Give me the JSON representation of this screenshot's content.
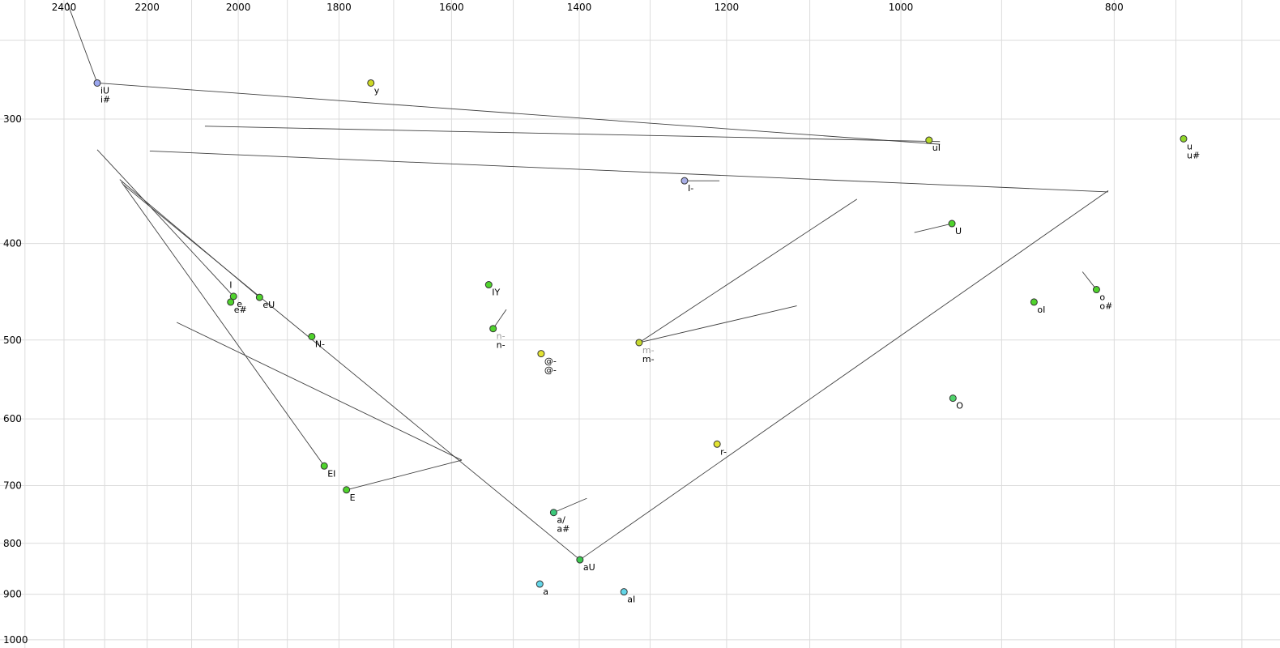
{
  "chart_data": {
    "type": "scatter",
    "title": "",
    "description": "Vowel formant plot: F2 (Hz) on reversed logarithmic top axis, F1 (Hz) on logarithmic left axis, with vowel tokens and diphthong trajectory lines",
    "x_axis": {
      "scale": "log",
      "reversed": true,
      "range": [
        2500,
        700
      ],
      "ticks": [
        2400,
        2200,
        2000,
        1800,
        1600,
        1400,
        1200,
        1000,
        800
      ],
      "gridlines": [
        2500,
        2400,
        2300,
        2200,
        2100,
        2000,
        1900,
        1800,
        1700,
        1600,
        1500,
        1400,
        1300,
        1200,
        1100,
        1000,
        900,
        800,
        750,
        700
      ]
    },
    "y_axis": {
      "scale": "log",
      "range": [
        250,
        1000
      ],
      "ticks": [
        300,
        400,
        500,
        600,
        700,
        800,
        900,
        1000
      ],
      "gridlines": [
        250,
        300,
        400,
        500,
        600,
        700,
        800,
        900,
        1000
      ]
    },
    "colors": {
      "grid": "#dcdcdc",
      "line": "#404040",
      "text": "#000000",
      "muted_label": "#999999",
      "point_stroke": "#333333"
    },
    "points": [
      {
        "id": "iU",
        "f2": 2318,
        "f1": 276,
        "color": "#9aa6ee",
        "labels": [
          {
            "t": "iU"
          },
          {
            "t": "i#"
          }
        ]
      },
      {
        "id": "y",
        "f2": 1741,
        "f1": 276,
        "color": "#cdd824",
        "labels": [
          {
            "t": "y"
          }
        ]
      },
      {
        "id": "uI",
        "f2": 971,
        "f1": 315,
        "color": "#b6d828",
        "labels": [
          {
            "t": "uI"
          }
        ]
      },
      {
        "id": "u",
        "f2": 744,
        "f1": 314,
        "color": "#90d62a",
        "labels": [
          {
            "t": "u"
          },
          {
            "t": "u#"
          }
        ]
      },
      {
        "id": "I-",
        "f2": 1254,
        "f1": 346,
        "color": "#a8aee6",
        "labels": [
          {
            "t": "I-"
          }
        ]
      },
      {
        "id": "U",
        "f2": 948,
        "f1": 382,
        "color": "#4fd32c",
        "labels": [
          {
            "t": "U"
          }
        ]
      },
      {
        "id": "e",
        "f2": 2010,
        "f1": 452,
        "color": "#4fd32c",
        "labels": [
          {
            "t": "e"
          }
        ]
      },
      {
        "id": "e#",
        "f2": 2016,
        "f1": 458,
        "color": "#4fd32c",
        "labels": [
          {
            "t": "e#"
          }
        ]
      },
      {
        "id": "eU",
        "f2": 1956,
        "f1": 453,
        "color": "#4fd32c",
        "labels": [
          {
            "t": "eU"
          }
        ]
      },
      {
        "id": "IY",
        "f2": 1539,
        "f1": 440,
        "color": "#4fd32c",
        "labels": [
          {
            "t": "IY"
          }
        ]
      },
      {
        "id": "n-",
        "f2": 1532,
        "f1": 487,
        "color": "#4fd32c",
        "labels": [
          {
            "t": "n-",
            "muted": true
          },
          {
            "t": "n-"
          }
        ]
      },
      {
        "id": "@-",
        "f2": 1457,
        "f1": 516,
        "color": "#e3e332",
        "labels": [
          {
            "t": "@-"
          },
          {
            "t": "@-"
          }
        ]
      },
      {
        "id": "m-",
        "f2": 1315,
        "f1": 503,
        "color": "#c6d82e",
        "labels": [
          {
            "t": "m-",
            "muted": true
          },
          {
            "t": "m-"
          }
        ]
      },
      {
        "id": "o",
        "f2": 815,
        "f1": 445,
        "color": "#4fd32c",
        "labels": [
          {
            "t": "o"
          },
          {
            "t": "o#"
          }
        ]
      },
      {
        "id": "oI",
        "f2": 870,
        "f1": 458,
        "color": "#4fd32c",
        "labels": [
          {
            "t": "oI"
          }
        ]
      },
      {
        "id": "N-",
        "f2": 1852,
        "f1": 496,
        "color": "#4fd32c",
        "labels": [
          {
            "t": "N-"
          }
        ]
      },
      {
        "id": "O",
        "f2": 947,
        "f1": 572,
        "color": "#4fd36a",
        "labels": [
          {
            "t": "O"
          }
        ]
      },
      {
        "id": "r-",
        "f2": 1212,
        "f1": 636,
        "color": "#e3e332",
        "labels": [
          {
            "t": "r-"
          }
        ]
      },
      {
        "id": "EI",
        "f2": 1828,
        "f1": 669,
        "color": "#4fd32c",
        "labels": [
          {
            "t": "EI"
          }
        ]
      },
      {
        "id": "E",
        "f2": 1786,
        "f1": 707,
        "color": "#4fd32c",
        "labels": [
          {
            "t": "E"
          }
        ]
      },
      {
        "id": "a/",
        "f2": 1438,
        "f1": 745,
        "color": "#3cc87a",
        "labels": [
          {
            "t": "a/"
          },
          {
            "t": "a#"
          }
        ]
      },
      {
        "id": "aU",
        "f2": 1399,
        "f1": 831,
        "color": "#3cc84f",
        "labels": [
          {
            "t": "aU"
          }
        ]
      },
      {
        "id": "a",
        "f2": 1459,
        "f1": 879,
        "color": "#63d6e8",
        "labels": [
          {
            "t": "a"
          }
        ]
      },
      {
        "id": "aI",
        "f2": 1336,
        "f1": 895,
        "color": "#63d6e8",
        "labels": [
          {
            "t": "aI"
          }
        ]
      }
    ],
    "annotations": [
      {
        "t": "I",
        "f2": 2015,
        "f1": 440
      }
    ],
    "segments": [
      [
        2392,
        229,
        2318,
        276
      ],
      [
        2318,
        276,
        960,
        318
      ],
      [
        2071,
        305,
        960,
        316
      ],
      [
        2194,
        323,
        805,
        355
      ],
      [
        1399,
        831,
        805,
        354
      ],
      [
        2318,
        322,
        2010,
        452
      ],
      [
        2264,
        345,
        1956,
        453
      ],
      [
        2256,
        349,
        1399,
        831
      ],
      [
        2260,
        347,
        1828,
        669
      ],
      [
        2133,
        480,
        1583,
        660
      ],
      [
        1786,
        707,
        1583,
        660
      ],
      [
        1315,
        503,
        1047,
        361
      ],
      [
        1315,
        503,
        1115,
        462
      ],
      [
        1532,
        487,
        1511,
        466
      ],
      [
        1438,
        745,
        1389,
        721
      ],
      [
        986,
        390,
        948,
        382
      ],
      [
        827,
        427,
        815,
        445
      ],
      [
        1254,
        346,
        1209,
        346
      ]
    ]
  }
}
